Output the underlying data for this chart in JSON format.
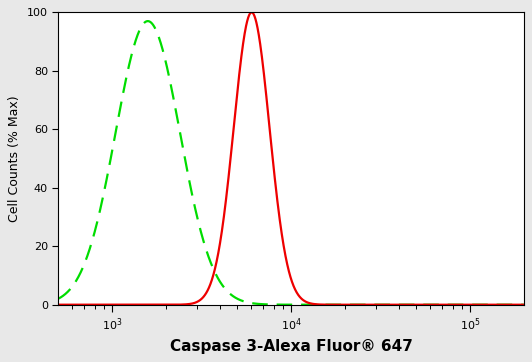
{
  "title": "",
  "xlabel": "Caspase 3-Alexa Fluor® 647",
  "ylabel": "Cell Counts (% Max)",
  "xlim_log": [
    2.7,
    5.3
  ],
  "ylim": [
    0,
    100
  ],
  "yticks": [
    0,
    20,
    40,
    60,
    80,
    100
  ],
  "green_peak_log": 3.2,
  "green_sigma_log": 0.18,
  "green_amplitude": 97,
  "red_peak_log": 3.78,
  "red_sigma_log": 0.1,
  "red_amplitude": 100,
  "green_color": "#00dd00",
  "red_color": "#ee0000",
  "background_color": "#e8e8e8",
  "plot_bg": "#ffffff",
  "linewidth": 1.6,
  "xlabel_fontsize": 11,
  "ylabel_fontsize": 9,
  "tick_labelsize": 8
}
